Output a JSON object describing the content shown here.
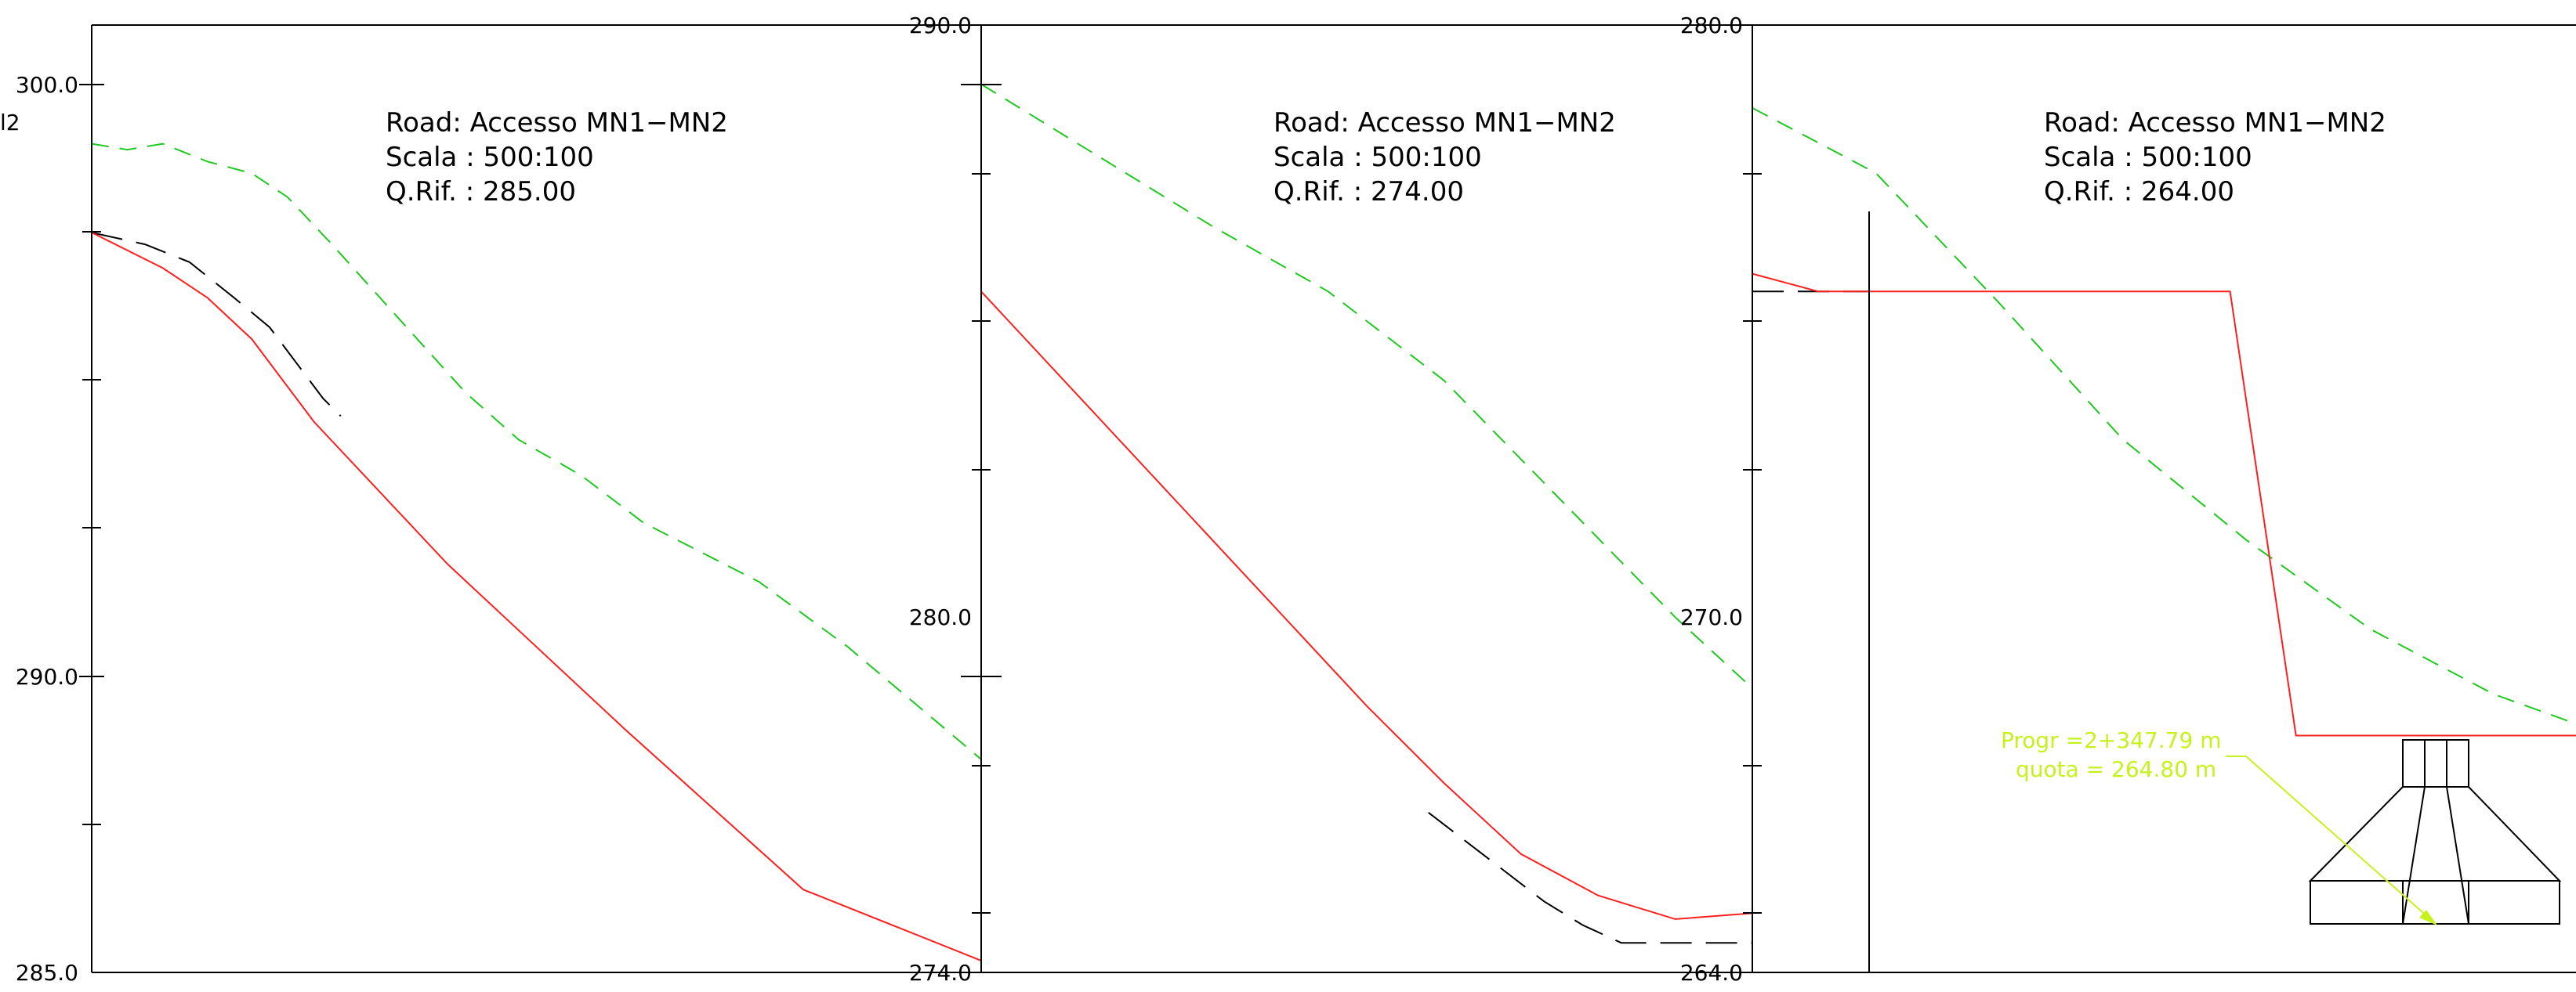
{
  "colors": {
    "background": "#ffffff",
    "axis": "#000000",
    "road_profile": "#ff1e1e",
    "ground_profile": "#1ec81e",
    "existing_profile": "#000000",
    "callout": "#c6f21c"
  },
  "cut_label": "l2",
  "panels": [
    {
      "y_top": 300.0,
      "y_bottom": 285.0,
      "y_min": 285,
      "y_max": 301.5,
      "top_label": "300.0",
      "mid_label": "290.0",
      "bottom_label": "285.0",
      "info": {
        "road": "Road:  Accesso MN1−MN2",
        "scale": "Scala  :  500:100",
        "qrif": "Q.Rif.  :  285.00"
      },
      "red": [
        [
          0.0,
          297.5
        ],
        [
          0.08,
          296.9
        ],
        [
          0.13,
          296.4
        ],
        [
          0.18,
          295.7
        ],
        [
          0.25,
          294.3
        ],
        [
          0.4,
          291.9
        ],
        [
          0.6,
          289.1
        ],
        [
          0.8,
          286.4
        ],
        [
          1.0,
          285.2
        ]
      ],
      "green": [
        [
          0.0,
          299.0
        ],
        [
          0.04,
          298.9
        ],
        [
          0.08,
          299.0
        ],
        [
          0.13,
          298.7
        ],
        [
          0.18,
          298.5
        ],
        [
          0.22,
          298.1
        ],
        [
          0.27,
          297.3
        ],
        [
          0.33,
          296.3
        ],
        [
          0.42,
          294.8
        ],
        [
          0.48,
          294.0
        ],
        [
          0.55,
          293.4
        ],
        [
          0.62,
          292.6
        ],
        [
          0.75,
          291.6
        ],
        [
          0.85,
          290.5
        ],
        [
          1.0,
          288.6
        ]
      ],
      "black": [
        [
          0.0,
          297.5
        ],
        [
          0.06,
          297.3
        ],
        [
          0.11,
          297.0
        ],
        [
          0.16,
          296.4
        ],
        [
          0.2,
          295.9
        ],
        [
          0.26,
          294.7
        ],
        [
          0.28,
          294.4
        ]
      ]
    },
    {
      "y_top": 290.0,
      "y_bottom": 274.0,
      "y_min": 274,
      "y_max": 290,
      "top_label": "290.0",
      "mid_label": "280.0",
      "bottom_label": "274.0",
      "info": {
        "road": "Road:  Accesso MN1−MN2",
        "scale": "Scala  :  500:100",
        "qrif": "Q.Rif.  :  274.00"
      },
      "red": [
        [
          0.0,
          285.5
        ],
        [
          0.25,
          282.0
        ],
        [
          0.5,
          278.5
        ],
        [
          0.6,
          277.2
        ],
        [
          0.7,
          276.0
        ],
        [
          0.8,
          275.3
        ],
        [
          0.9,
          274.9
        ],
        [
          1.0,
          275.0
        ]
      ],
      "green": [
        [
          0.0,
          289.0
        ],
        [
          0.15,
          287.8
        ],
        [
          0.3,
          286.6
        ],
        [
          0.45,
          285.5
        ],
        [
          0.6,
          284.0
        ],
        [
          0.75,
          282.0
        ],
        [
          0.9,
          280.0
        ],
        [
          1.0,
          278.8
        ]
      ],
      "black": [
        [
          0.58,
          276.7
        ],
        [
          0.65,
          276.0
        ],
        [
          0.73,
          275.2
        ],
        [
          0.78,
          274.8
        ],
        [
          0.83,
          274.5
        ],
        [
          1.0,
          274.5
        ]
      ]
    },
    {
      "y_top": 280.0,
      "y_bottom": 264.0,
      "y_min": 264,
      "y_max": 280,
      "top_label": "280.0",
      "mid_label": "270.0",
      "bottom_label": "264.0",
      "info": {
        "road": "Road:  Accesso MN1−MN2",
        "scale": "Scala  :  500:100",
        "qrif": "Q.Rif.  :  264.00"
      },
      "red": [
        [
          0.0,
          275.8
        ],
        [
          0.08,
          275.5
        ],
        [
          0.4,
          275.5
        ],
        [
          0.58,
          275.5
        ],
        [
          0.66,
          268.0
        ],
        [
          1.0,
          268.0
        ]
      ],
      "green": [
        [
          0.0,
          278.6
        ],
        [
          0.15,
          277.5
        ],
        [
          0.3,
          275.3
        ],
        [
          0.45,
          273.0
        ],
        [
          0.6,
          271.3
        ],
        [
          0.75,
          269.8
        ],
        [
          0.9,
          268.7
        ],
        [
          1.0,
          268.2
        ]
      ],
      "black": [
        [
          0.0,
          275.5
        ],
        [
          0.14,
          275.5
        ]
      ]
    }
  ],
  "callout": {
    "progr": "Progr =2+347.79  m",
    "quota": "quota  =  264.80  m"
  }
}
